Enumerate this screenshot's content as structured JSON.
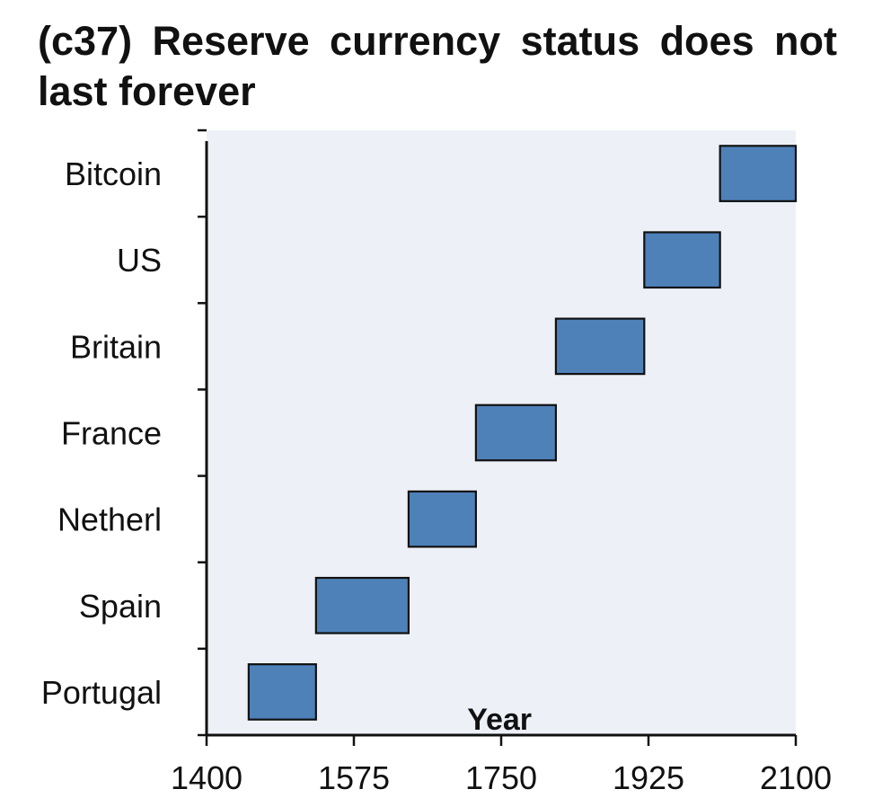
{
  "chart_data": {
    "type": "bar",
    "orientation": "horizontal-range",
    "title": "(c37) Reserve currency status does not last forever",
    "xlabel": "Year",
    "ylabel": "",
    "xlim": [
      1400,
      2100
    ],
    "xticks": [
      1400,
      1575,
      1750,
      1925,
      2100
    ],
    "categories": [
      "Portugal",
      "Spain",
      "Netherl",
      "France",
      "Britain",
      "US",
      "Bitcoin"
    ],
    "series": [
      {
        "values": [
          {
            "category": "Portugal",
            "start": 1450,
            "end": 1530
          },
          {
            "category": "Spain",
            "start": 1530,
            "end": 1640
          },
          {
            "category": "Netherl",
            "start": 1640,
            "end": 1720
          },
          {
            "category": "France",
            "start": 1720,
            "end": 1815
          },
          {
            "category": "Britain",
            "start": 1815,
            "end": 1920
          },
          {
            "category": "US",
            "start": 1920,
            "end": 2010
          },
          {
            "category": "Bitcoin",
            "start": 2010,
            "end": 2100
          }
        ]
      }
    ],
    "grid": false,
    "legend": "none",
    "colors": {
      "bar_fill": "#4f81b9",
      "bar_stroke": "#111111",
      "plot_background": "#edf1f7",
      "axis": "#111111"
    }
  }
}
